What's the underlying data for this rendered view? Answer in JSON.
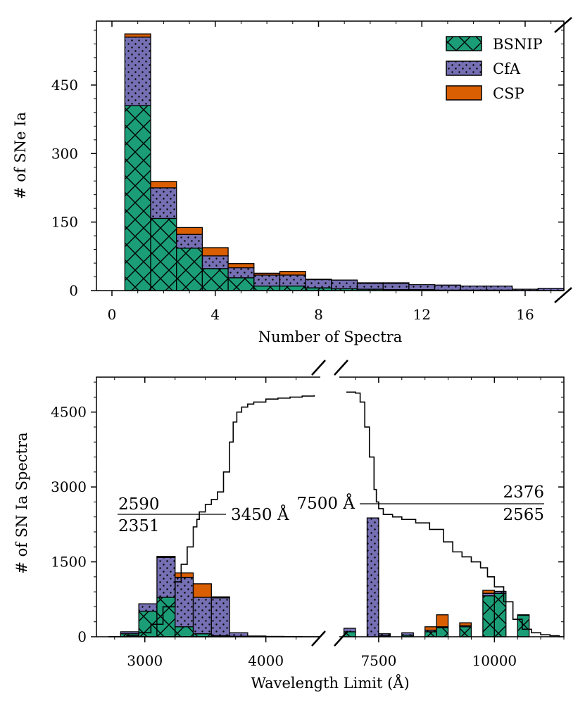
{
  "colors": {
    "bsnip": "#1b9e77",
    "cfa": "#7570b3",
    "csp": "#d95f02"
  },
  "legend": {
    "bsnip": "BSNIP",
    "cfa": "CfA",
    "csp": "CSP"
  },
  "chart_data": [
    {
      "type": "bar",
      "stacked": true,
      "xlabel": "Number of Spectra",
      "ylabel": "# of SNe Ia",
      "xlim": [
        -0.6,
        17.5
      ],
      "ylim": [
        0,
        590
      ],
      "xticks": [
        0,
        4,
        8,
        12,
        16
      ],
      "yticks": [
        0,
        150,
        300,
        450
      ],
      "bin_width": 1,
      "categories": [
        1,
        2,
        3,
        4,
        5,
        6,
        7,
        8,
        9,
        10,
        11,
        12,
        13,
        14,
        15,
        16,
        17
      ],
      "series": [
        {
          "name": "BSNIP",
          "values": [
            405,
            158,
            93,
            48,
            28,
            10,
            10,
            6,
            4,
            3,
            2,
            2,
            1,
            1,
            1,
            0,
            0
          ]
        },
        {
          "name": "CfA",
          "values": [
            150,
            67,
            30,
            28,
            22,
            24,
            24,
            18,
            19,
            13,
            14,
            11,
            11,
            9,
            9,
            3,
            5
          ]
        },
        {
          "name": "CSP",
          "values": [
            7,
            14,
            15,
            18,
            9,
            4,
            8,
            1,
            0,
            1,
            1,
            0,
            0,
            0,
            0,
            0,
            0
          ]
        }
      ],
      "legend_position": "top-right"
    },
    {
      "type": "bar",
      "stacked": true,
      "broken_axis": true,
      "xlabel": "Wavelength Limit (Å)",
      "ylabel": "# of SN Ia Spectra",
      "ylim": [
        0,
        5200
      ],
      "yticks": [
        0,
        1500,
        3000,
        4500
      ],
      "left_panel": {
        "xlim": [
          2600,
          4450
        ],
        "xticks": [
          3000,
          4000
        ],
        "bin_width": 150,
        "bin_starts": [
          2800,
          2950,
          3100,
          3250,
          3400,
          3550,
          3700,
          3850,
          4000,
          4150
        ],
        "series": [
          {
            "name": "BSNIP",
            "values": [
              60,
              510,
              790,
              200,
              60,
              20,
              10,
              0,
              0,
              0
            ]
          },
          {
            "name": "CfA",
            "values": [
              40,
              150,
              800,
              990,
              730,
              760,
              70,
              15,
              8,
              5
            ]
          },
          {
            "name": "CSP",
            "values": [
              0,
              0,
              20,
              90,
              270,
              20,
              0,
              0,
              0,
              0
            ]
          }
        ],
        "cumulative": {
          "x": [
            2700,
            2850,
            2950,
            3050,
            3150,
            3250,
            3300,
            3350,
            3400,
            3430,
            3450,
            3500,
            3550,
            3600,
            3650,
            3700,
            3730,
            3760,
            3800,
            3850,
            3900,
            4000,
            4100,
            4200,
            4300,
            4400
          ],
          "y": [
            0,
            20,
            80,
            250,
            600,
            1100,
            1450,
            1800,
            2200,
            2351,
            2500,
            2650,
            2750,
            2900,
            3300,
            3900,
            4300,
            4500,
            4600,
            4660,
            4700,
            4760,
            4780,
            4800,
            4820,
            4840
          ]
        },
        "annotation": {
          "label": "3450 Å",
          "above": "2590",
          "below": "2351"
        }
      },
      "right_panel": {
        "xlim": [
          6650,
          11500
        ],
        "xticks": [
          7500,
          10000
        ],
        "bin_width": 250,
        "bin_starts": [
          6750,
          7250,
          7500,
          8000,
          8500,
          8750,
          9250,
          9750,
          10000,
          10500
        ],
        "series": [
          {
            "name": "BSNIP",
            "values": [
              100,
              0,
              20,
              30,
              100,
              180,
              200,
              820,
              870,
              430
            ]
          },
          {
            "name": "CfA",
            "values": [
              70,
              2380,
              40,
              50,
              30,
              20,
              20,
              50,
              40,
              10
            ]
          },
          {
            "name": "CSP",
            "values": [
              0,
              0,
              0,
              0,
              70,
              240,
              60,
              60,
              0,
              0
            ]
          }
        ],
        "cumulative": {
          "x": [
            6800,
            7000,
            7100,
            7200,
            7300,
            7400,
            7450,
            7500,
            7600,
            7800,
            8000,
            8300,
            8600,
            8900,
            9100,
            9300,
            9500,
            9700,
            9850,
            10000,
            10200,
            10400,
            10600,
            10800,
            11000,
            11200,
            11400
          ],
          "y": [
            4900,
            4880,
            4700,
            4200,
            3600,
            2950,
            2700,
            2565,
            2450,
            2400,
            2350,
            2280,
            2150,
            1900,
            1700,
            1600,
            1500,
            1380,
            1200,
            1000,
            700,
            350,
            150,
            80,
            40,
            20,
            0
          ]
        },
        "annotation": {
          "label": "7500 Å",
          "above": "2376",
          "below": "2565"
        }
      }
    }
  ]
}
